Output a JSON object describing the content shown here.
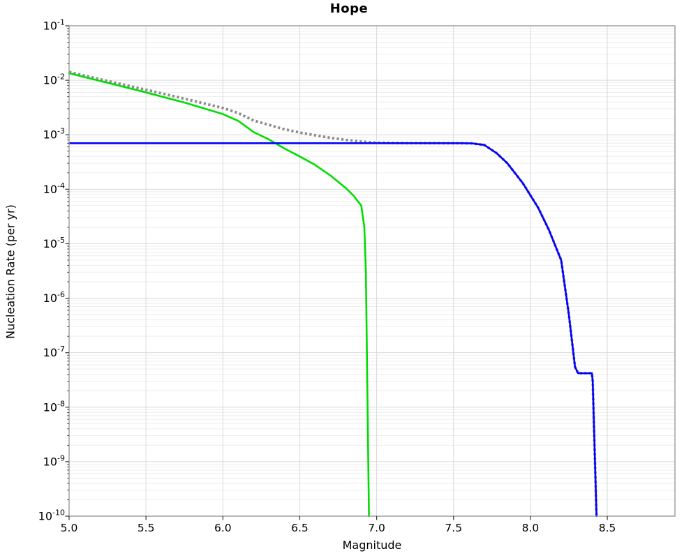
{
  "chart_data": {
    "type": "line",
    "title": "Hope",
    "xlabel": "Magnitude",
    "ylabel": "Nucleation Rate (per yr)",
    "xlim": [
      5.0,
      8.94
    ],
    "ylim": [
      1e-10,
      0.1
    ],
    "ytop_exponent": -1,
    "ybottom_exponent": -10,
    "xticks": [
      "5.0",
      "5.5",
      "6.0",
      "6.5",
      "7.0",
      "7.5",
      "8.0",
      "8.5"
    ],
    "xtick_values": [
      5.0,
      5.5,
      6.0,
      6.5,
      7.0,
      7.5,
      8.0,
      8.5
    ],
    "ytick_exponents": [
      -1,
      -2,
      -3,
      -4,
      -5,
      -6,
      -7,
      -8,
      -9,
      -10
    ],
    "grid": "major-and-log-minor",
    "legend": "none",
    "colors": {
      "green_series": "#00dd00",
      "blue_series": "#0000ff",
      "dotted_series": "#8c8c8c",
      "grid_major": "#d9d9d9",
      "grid_minor": "#ededed",
      "frame": "#999999",
      "tick": "#333333",
      "text": "#000000"
    },
    "series": [
      {
        "name": "total-dotted",
        "style": "dotted",
        "color": "#8c8c8c",
        "width": 3.8,
        "points": [
          [
            5.0,
            0.0142
          ],
          [
            5.25,
            0.0097
          ],
          [
            5.5,
            0.0067
          ],
          [
            5.75,
            0.0046
          ],
          [
            6.0,
            0.0031
          ],
          [
            6.1,
            0.0025
          ],
          [
            6.2,
            0.00182
          ],
          [
            6.3,
            0.00152
          ],
          [
            6.4,
            0.00126
          ],
          [
            6.5,
            0.0011
          ],
          [
            6.6,
            0.00098
          ],
          [
            6.7,
            0.000878
          ],
          [
            6.8,
            0.000805
          ],
          [
            6.9,
            0.00075
          ],
          [
            7.0,
            0.000715
          ],
          [
            7.1,
            0.000706
          ],
          [
            7.2,
            0.000702
          ],
          [
            7.55,
            0.0007
          ],
          [
            7.62,
            0.000695
          ],
          [
            7.7,
            0.00065
          ],
          [
            7.78,
            0.00046
          ],
          [
            7.85,
            0.0003
          ],
          [
            7.95,
            0.00013
          ],
          [
            8.05,
            4.6e-05
          ],
          [
            8.12,
            1.8e-05
          ],
          [
            8.2,
            5e-06
          ],
          [
            8.25,
            5e-07
          ],
          [
            8.29,
            5.5e-08
          ],
          [
            8.31,
            4.2e-08
          ],
          [
            8.4,
            4.2e-08
          ],
          [
            8.405,
            3e-08
          ],
          [
            8.43,
            1e-10
          ]
        ]
      },
      {
        "name": "green-curve",
        "style": "solid",
        "color": "#00dd00",
        "width": 2.6,
        "points": [
          [
            5.0,
            0.0135
          ],
          [
            5.25,
            0.009
          ],
          [
            5.5,
            0.006
          ],
          [
            5.75,
            0.0039
          ],
          [
            6.0,
            0.0024
          ],
          [
            6.1,
            0.0018
          ],
          [
            6.2,
            0.00112
          ],
          [
            6.3,
            0.00082
          ],
          [
            6.4,
            0.00056
          ],
          [
            6.5,
            0.0004
          ],
          [
            6.6,
            0.00028
          ],
          [
            6.7,
            0.000178
          ],
          [
            6.8,
            0.000105
          ],
          [
            6.85,
            7.6e-05
          ],
          [
            6.9,
            5e-05
          ],
          [
            6.92,
            2e-05
          ],
          [
            6.93,
            3e-06
          ],
          [
            6.95,
            1e-10
          ]
        ]
      },
      {
        "name": "blue-curve",
        "style": "solid",
        "color": "#0000ff",
        "width": 2.6,
        "points": [
          [
            5.0,
            0.0007
          ],
          [
            7.55,
            0.0007
          ],
          [
            7.62,
            0.000695
          ],
          [
            7.7,
            0.00065
          ],
          [
            7.78,
            0.00046
          ],
          [
            7.85,
            0.0003
          ],
          [
            7.95,
            0.00013
          ],
          [
            8.05,
            4.6e-05
          ],
          [
            8.12,
            1.8e-05
          ],
          [
            8.2,
            5e-06
          ],
          [
            8.25,
            5e-07
          ],
          [
            8.29,
            5.5e-08
          ],
          [
            8.31,
            4.2e-08
          ],
          [
            8.4,
            4.2e-08
          ],
          [
            8.405,
            3e-08
          ],
          [
            8.43,
            1e-10
          ]
        ]
      }
    ]
  }
}
